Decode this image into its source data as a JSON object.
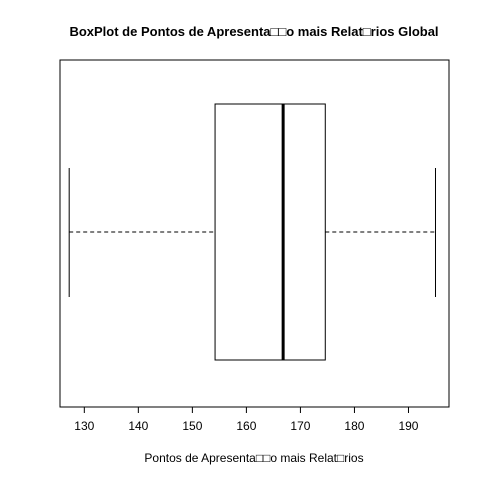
{
  "chart_data": {
    "type": "boxplot",
    "orientation": "horizontal",
    "title": "BoxPlot de Pontos de Apresenta□□o mais Relat□rios Global",
    "xlabel": "Pontos de Apresenta□□o mais Relat□rios",
    "ylabel": "",
    "xlim": [
      125.5,
      197.5
    ],
    "x_ticks": [
      130,
      140,
      150,
      160,
      170,
      180,
      190
    ],
    "grid": false,
    "series": [
      {
        "min": 127.2,
        "q1": 154.2,
        "median": 166.8,
        "q3": 174.6,
        "max": 195.0
      }
    ]
  }
}
